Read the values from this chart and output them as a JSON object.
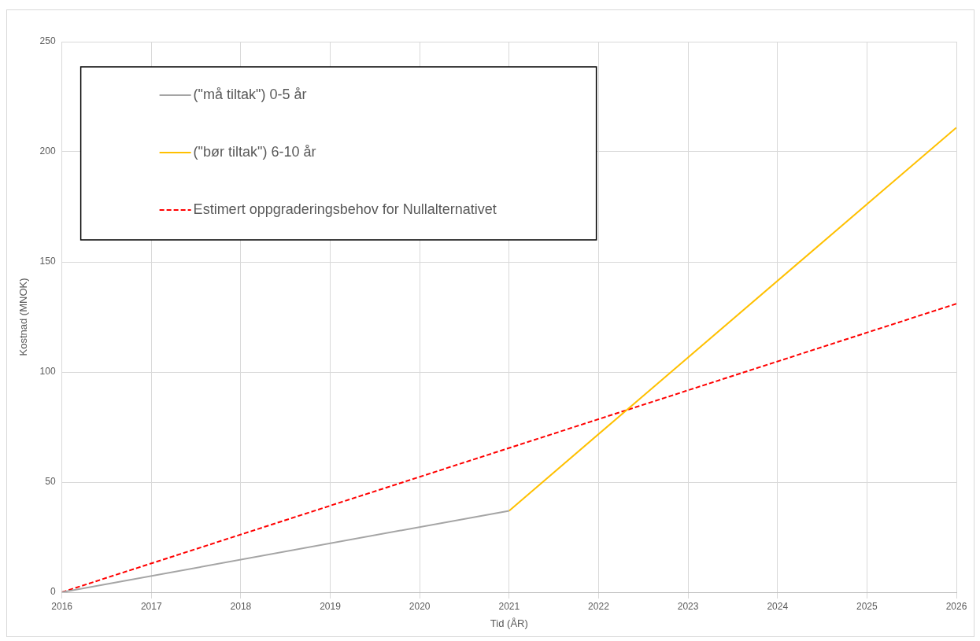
{
  "chart_data": {
    "type": "line",
    "xlabel": "Tid (ÅR)",
    "ylabel": "Kostnad (MNOK)",
    "xlim": [
      2016,
      2026
    ],
    "xticks": [
      2016,
      2017,
      2018,
      2019,
      2020,
      2021,
      2022,
      2023,
      2024,
      2025,
      2026
    ],
    "ylim": [
      0,
      250
    ],
    "yticks": [
      0,
      50,
      100,
      150,
      200,
      250
    ],
    "grid": true,
    "legend": "top left",
    "marker": "none",
    "series": [
      {
        "name": "(\"må tiltak\") 0-5 år",
        "color": "#a5a5a5",
        "x": [
          2016,
          2021
        ],
        "values": [
          0,
          37
        ],
        "line_style": "solid"
      },
      {
        "name": "(\"bør tiltak\") 6-10 år",
        "color": "#ffc000",
        "x": [
          2021,
          2026
        ],
        "values": [
          37,
          211
        ],
        "line_style": "solid"
      },
      {
        "name": "Estimert oppgraderingsbehov for Nullalternativet",
        "color": "#ff0000",
        "x": [
          2016,
          2026
        ],
        "values": [
          0,
          131
        ],
        "line_style": "dashed"
      }
    ]
  }
}
